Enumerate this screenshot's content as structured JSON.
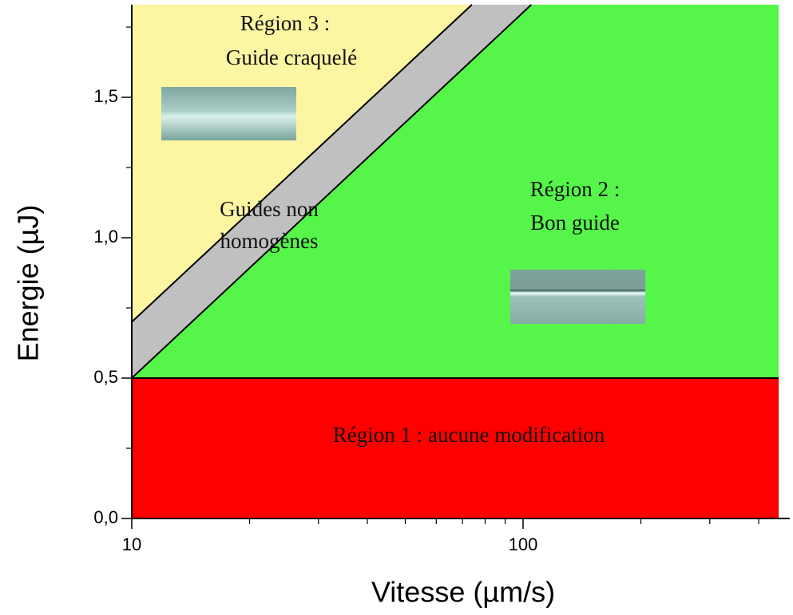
{
  "chart_data": {
    "type": "region",
    "x_label": "Vitesse (µm/s)",
    "y_label": "Energie (µJ)",
    "xscale": "log",
    "xlim": [
      10,
      480
    ],
    "ylim": [
      0,
      1.83
    ],
    "xticks": [
      10,
      100
    ],
    "xminorticks": [
      20,
      30,
      40,
      50,
      60,
      70,
      80,
      90,
      200,
      300,
      400
    ],
    "yticks": [
      {
        "value": 0,
        "label": "0,0"
      },
      {
        "value": 0.5,
        "label": "0,5"
      },
      {
        "value": 1,
        "label": "1,0"
      },
      {
        "value": 1.5,
        "label": "1,5"
      }
    ],
    "yminorticks": [
      0.25,
      0.75,
      1.25,
      1.75
    ],
    "regions": [
      {
        "lines": [
          "Région 1 : aucune modification"
        ],
        "color": "#ff0000",
        "x": [
          10,
          450,
          450,
          10
        ],
        "y": [
          0,
          0,
          0.5,
          0.5
        ]
      },
      {
        "lines": [
          "Région 2 :",
          "Bon guide"
        ],
        "color": "#55f54a",
        "x": [
          10,
          450,
          450,
          105
        ],
        "y": [
          0.5,
          0.5,
          1.83,
          1.83
        ]
      },
      {
        "lines": [
          "Guides non",
          "homogènes"
        ],
        "color": "#c0c0c0",
        "x": [
          10,
          105,
          74,
          10
        ],
        "y": [
          0.5,
          1.83,
          1.83,
          0.7
        ]
      },
      {
        "lines": [
          "Région 3 :",
          "Guide craquelé"
        ],
        "color": "#fcf5a2",
        "x": [
          10,
          74,
          10
        ],
        "y": [
          0.7,
          1.83,
          1.83
        ]
      }
    ],
    "boundaries": [
      {
        "x": [
          10,
          105
        ],
        "y": [
          0.5,
          1.83
        ]
      },
      {
        "x": [
          10,
          74
        ],
        "y": [
          0.7,
          1.83
        ]
      },
      {
        "x": [
          10,
          450
        ],
        "y": [
          0.5,
          0.5
        ]
      }
    ]
  }
}
